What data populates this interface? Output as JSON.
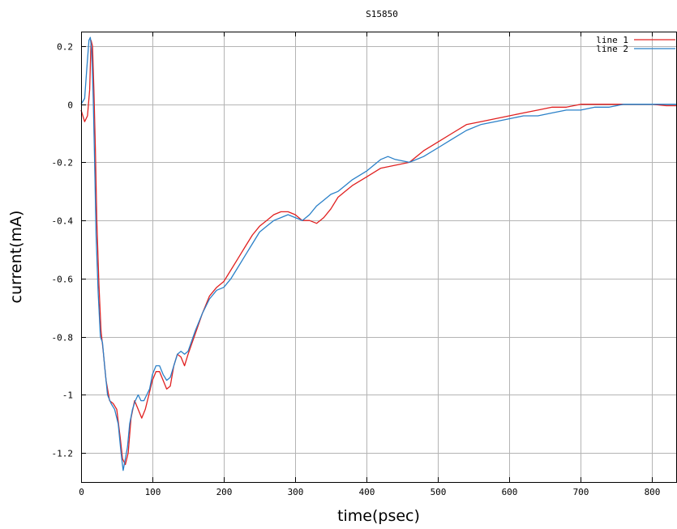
{
  "chart_data": {
    "type": "line",
    "title": "S15850",
    "xlabel": "time(psec)",
    "ylabel": "current(mA)",
    "xlim": [
      0,
      835
    ],
    "ylim": [
      -1.3,
      0.25
    ],
    "xticks": [
      "0",
      "100",
      "200",
      "300",
      "400",
      "500",
      "600",
      "700",
      "800"
    ],
    "yticks": [
      "0.2",
      "0",
      "-0.2",
      "-0.4",
      "-0.6",
      "-0.8",
      "-1",
      "-1.2"
    ],
    "grid": true,
    "legend_position": "top-right",
    "series": [
      {
        "name": "line 1",
        "color": "#e02020",
        "x": [
          0,
          5,
          9,
          12,
          14,
          16,
          18,
          20,
          22,
          25,
          28,
          31,
          35,
          40,
          45,
          50,
          55,
          58,
          62,
          66,
          70,
          75,
          80,
          85,
          90,
          95,
          100,
          105,
          110,
          115,
          120,
          125,
          130,
          135,
          140,
          145,
          150,
          160,
          170,
          180,
          190,
          200,
          210,
          220,
          230,
          240,
          250,
          260,
          270,
          280,
          290,
          300,
          310,
          320,
          330,
          340,
          350,
          360,
          370,
          380,
          400,
          420,
          440,
          460,
          480,
          500,
          520,
          540,
          560,
          580,
          600,
          620,
          640,
          660,
          680,
          700,
          720,
          740,
          760,
          780,
          800,
          820,
          835
        ],
        "y": [
          -0.02,
          -0.06,
          -0.04,
          0.05,
          0.22,
          0.2,
          0.05,
          -0.15,
          -0.4,
          -0.62,
          -0.78,
          -0.85,
          -0.95,
          -1.02,
          -1.03,
          -1.05,
          -1.15,
          -1.22,
          -1.24,
          -1.2,
          -1.08,
          -1.02,
          -1.05,
          -1.08,
          -1.05,
          -1.0,
          -0.95,
          -0.92,
          -0.92,
          -0.95,
          -0.98,
          -0.97,
          -0.9,
          -0.86,
          -0.87,
          -0.9,
          -0.86,
          -0.79,
          -0.72,
          -0.66,
          -0.63,
          -0.61,
          -0.57,
          -0.53,
          -0.49,
          -0.45,
          -0.42,
          -0.4,
          -0.38,
          -0.37,
          -0.37,
          -0.38,
          -0.4,
          -0.4,
          -0.41,
          -0.39,
          -0.36,
          -0.32,
          -0.3,
          -0.28,
          -0.25,
          -0.22,
          -0.21,
          -0.2,
          -0.16,
          -0.13,
          -0.1,
          -0.07,
          -0.06,
          -0.05,
          -0.04,
          -0.03,
          -0.02,
          -0.01,
          -0.01,
          0.0,
          0.0,
          0.0,
          0.0,
          0.0,
          0.0,
          -0.005,
          -0.005
        ]
      },
      {
        "name": "line 2",
        "color": "#2a80c8",
        "x": [
          0,
          5,
          8,
          11,
          13,
          15,
          17,
          19,
          21,
          24,
          27,
          30,
          33,
          37,
          42,
          47,
          52,
          56,
          59,
          62,
          65,
          68,
          72,
          76,
          80,
          84,
          88,
          92,
          96,
          100,
          105,
          110,
          115,
          120,
          125,
          130,
          135,
          140,
          145,
          150,
          160,
          170,
          180,
          190,
          200,
          210,
          220,
          230,
          240,
          250,
          260,
          270,
          280,
          290,
          300,
          310,
          320,
          330,
          340,
          350,
          360,
          370,
          380,
          400,
          420,
          430,
          440,
          460,
          480,
          500,
          520,
          540,
          560,
          580,
          600,
          620,
          640,
          660,
          680,
          700,
          720,
          740,
          760,
          780,
          800,
          820,
          835
        ],
        "y": [
          0.0,
          0.02,
          0.12,
          0.22,
          0.23,
          0.18,
          0.02,
          -0.2,
          -0.45,
          -0.65,
          -0.8,
          -0.82,
          -0.9,
          -1.0,
          -1.03,
          -1.05,
          -1.1,
          -1.2,
          -1.26,
          -1.22,
          -1.18,
          -1.1,
          -1.05,
          -1.02,
          -1.0,
          -1.02,
          -1.02,
          -1.0,
          -0.98,
          -0.93,
          -0.9,
          -0.9,
          -0.93,
          -0.95,
          -0.94,
          -0.9,
          -0.86,
          -0.85,
          -0.86,
          -0.85,
          -0.78,
          -0.72,
          -0.67,
          -0.64,
          -0.63,
          -0.6,
          -0.56,
          -0.52,
          -0.48,
          -0.44,
          -0.42,
          -0.4,
          -0.39,
          -0.38,
          -0.39,
          -0.4,
          -0.38,
          -0.35,
          -0.33,
          -0.31,
          -0.3,
          -0.28,
          -0.26,
          -0.23,
          -0.19,
          -0.18,
          -0.19,
          -0.2,
          -0.18,
          -0.15,
          -0.12,
          -0.09,
          -0.07,
          -0.06,
          -0.05,
          -0.04,
          -0.04,
          -0.03,
          -0.02,
          -0.02,
          -0.01,
          -0.01,
          0.0,
          0.0,
          0.0,
          0.0,
          0.0
        ]
      }
    ]
  }
}
